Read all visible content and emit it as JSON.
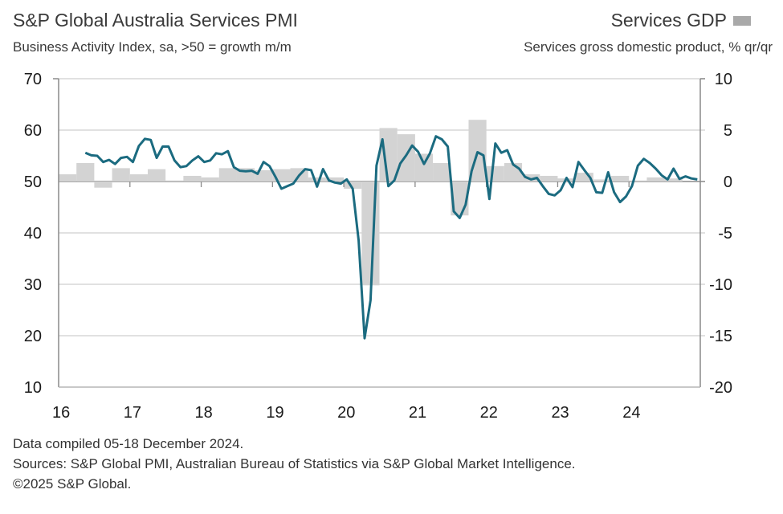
{
  "chart_data": {
    "type": "bar+line",
    "title": "S&P Global Australia Services PMI",
    "subtitle": "Business Activity Index, sa, >50 = growth m/m",
    "right_title": "Services GDP",
    "right_subtitle": "Services gross domestic product, % qr/qr",
    "left_axis": {
      "range": [
        10,
        70
      ],
      "ticks": [
        "70",
        "60",
        "50",
        "40",
        "30",
        "20",
        "10"
      ]
    },
    "right_axis": {
      "range": [
        -20,
        10
      ],
      "ticks": [
        "10",
        "5",
        "0",
        "-5",
        "-10",
        "-15",
        "-20"
      ]
    },
    "x_axis": {
      "range": [
        2016,
        2025
      ],
      "tick_labels": [
        "16",
        "17",
        "18",
        "19",
        "20",
        "21",
        "22",
        "23",
        "24"
      ]
    },
    "grid": true,
    "legend": "top-right",
    "colors": {
      "pmi_line": "#1b6b80",
      "gdp_bars": "#d3d3d3",
      "legend_swatch": "#a9a9a9"
    },
    "pmi_series": {
      "start": "2016-05",
      "frequency": "monthly",
      "values": [
        55.6,
        55.1,
        55.0,
        53.8,
        54.2,
        53.4,
        54.6,
        54.8,
        53.8,
        56.9,
        58.3,
        58.1,
        54.6,
        56.8,
        56.8,
        54.1,
        52.8,
        53.0,
        54.1,
        54.9,
        53.8,
        54.1,
        55.5,
        55.3,
        55.9,
        52.8,
        52.1,
        52.0,
        52.1,
        51.5,
        53.8,
        53.0,
        50.9,
        48.6,
        49.1,
        49.6,
        51.2,
        52.4,
        52.2,
        49.0,
        52.4,
        50.2,
        49.8,
        49.6,
        50.4,
        48.6,
        38.5,
        19.5,
        26.9,
        53.1,
        58.2,
        49.1,
        50.2,
        53.5,
        55.1,
        57.0,
        55.8,
        53.4,
        55.5,
        58.8,
        58.2,
        56.8,
        44.2,
        42.9,
        45.5,
        52.0,
        55.7,
        55.1,
        46.6,
        57.4,
        55.6,
        56.1,
        53.3,
        52.5,
        50.9,
        50.4,
        50.7,
        49.1,
        47.6,
        47.3,
        48.3,
        50.7,
        48.9,
        53.8,
        52.2,
        50.7,
        47.9,
        47.8,
        51.8,
        47.9,
        46.0,
        47.1,
        49.1,
        53.1,
        54.4,
        53.6,
        52.5,
        51.2,
        50.4,
        52.5,
        50.5,
        51.0,
        50.6,
        50.4
      ]
    },
    "gdp_series": {
      "start": "2016-Q1",
      "frequency": "quarterly",
      "values": [
        0.7,
        1.8,
        -0.6,
        1.3,
        0.7,
        1.2,
        0.1,
        0.55,
        0.4,
        1.3,
        1.3,
        1.1,
        1.2,
        1.3,
        0.4,
        0.4,
        -0.7,
        -10.1,
        5.2,
        4.6,
        2.7,
        1.8,
        -3.3,
        6.0,
        1.5,
        1.8,
        0.7,
        0.55,
        0.3,
        0.85,
        0.2,
        0.55,
        0.1,
        0.4,
        0.3
      ]
    }
  },
  "footer": {
    "line1": "Data compiled 05-18 December 2024.",
    "line2": "Sources: S&P Global PMI, Australian Bureau of Statistics via S&P Global Market Intelligence.",
    "line3": "©2025 S&P Global."
  }
}
